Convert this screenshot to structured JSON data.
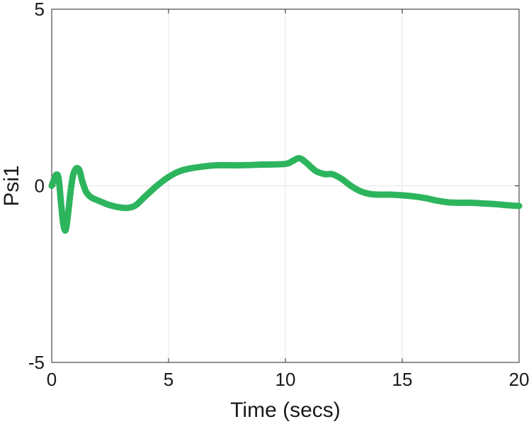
{
  "chart_data": {
    "type": "line",
    "title": "",
    "xlabel": "Time (secs)",
    "ylabel": "Psi1",
    "xlim": [
      0,
      20
    ],
    "ylim": [
      -5,
      5
    ],
    "xticks": [
      0,
      5,
      10,
      15,
      20
    ],
    "yticks": [
      -5,
      0,
      5
    ],
    "xtick_labels": [
      "0",
      "5",
      "10",
      "15",
      "20"
    ],
    "ytick_labels": [
      "-5",
      "0",
      "5"
    ],
    "grid": true,
    "legend": "none",
    "colors": {
      "line": "#2db55d",
      "grid": "#e5e5e5",
      "axis": "#262626"
    },
    "series": [
      {
        "x": [
          0,
          0.1,
          0.2,
          0.3,
          0.4,
          0.5,
          0.6,
          0.7,
          0.8,
          0.9,
          1.0,
          1.1,
          1.2,
          1.3,
          1.4,
          1.5,
          1.7,
          2.0,
          2.5,
          3.0,
          3.3,
          3.6,
          4.0,
          4.5,
          5.0,
          5.5,
          6.0,
          7.0,
          8.0,
          9.0,
          10.0,
          10.3,
          10.6,
          10.9,
          11.3,
          11.7,
          12.0,
          12.4,
          12.8,
          13.2,
          13.6,
          14.0,
          14.5,
          15.0,
          15.5,
          16.0,
          16.5,
          17.0,
          17.5,
          18.0,
          18.5,
          19.0,
          19.5,
          20.0
        ],
        "y": [
          0.0,
          0.18,
          0.32,
          0.2,
          -0.5,
          -1.1,
          -1.25,
          -0.8,
          -0.2,
          0.25,
          0.45,
          0.5,
          0.42,
          0.15,
          -0.05,
          -0.2,
          -0.33,
          -0.42,
          -0.55,
          -0.62,
          -0.62,
          -0.55,
          -0.3,
          0.0,
          0.25,
          0.42,
          0.5,
          0.58,
          0.58,
          0.6,
          0.62,
          0.7,
          0.78,
          0.65,
          0.42,
          0.33,
          0.33,
          0.2,
          0.0,
          -0.15,
          -0.23,
          -0.25,
          -0.25,
          -0.27,
          -0.3,
          -0.35,
          -0.42,
          -0.47,
          -0.48,
          -0.48,
          -0.5,
          -0.52,
          -0.55,
          -0.57
        ]
      }
    ]
  }
}
